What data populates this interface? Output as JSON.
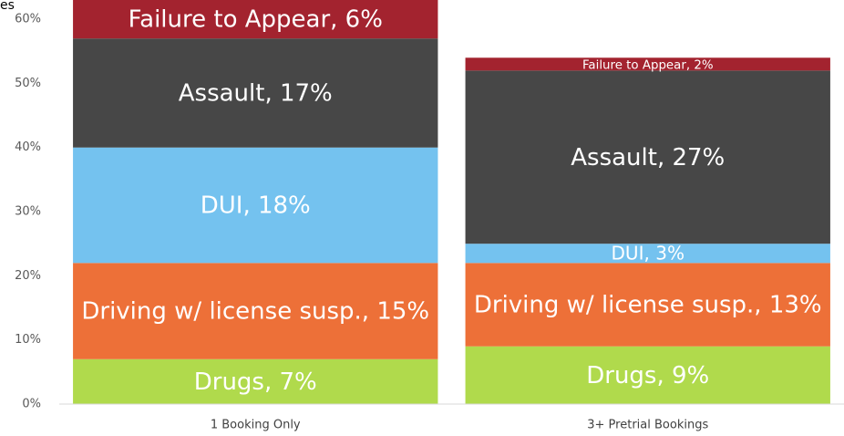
{
  "chart_data": {
    "type": "stacked_bar",
    "y_axis_label": "es",
    "categories": [
      "1 Booking Only",
      "3+ Pretrial Bookings"
    ],
    "series": [
      {
        "name": "Drugs",
        "color": "#b0da4c",
        "values": [
          7,
          9
        ],
        "value_labels": [
          "Drugs, 7%",
          "Drugs, 9%"
        ]
      },
      {
        "name": "Driving w/ license susp.",
        "color": "#ed7038",
        "values": [
          15,
          13
        ],
        "value_labels": [
          "Driving w/ license susp., 15%",
          "Driving w/ license susp., 13%"
        ]
      },
      {
        "name": "DUI",
        "color": "#74c2ef",
        "values": [
          18,
          3
        ],
        "value_labels": [
          "DUI, 18%",
          "DUI, 3%"
        ]
      },
      {
        "name": "Assault",
        "color": "#474747",
        "values": [
          17,
          27
        ],
        "value_labels": [
          "Assault, 17%",
          "Assault, 27%"
        ]
      },
      {
        "name": "Failure to Appear",
        "color": "#a3232f",
        "values": [
          6,
          2
        ],
        "value_labels": [
          "Failure to Appear, 6%",
          "Failure to Appear, 2%"
        ]
      }
    ],
    "ylim": [
      0,
      63
    ],
    "yticks": [
      {
        "value": 0,
        "label": "0%"
      },
      {
        "value": 10,
        "label": "10%"
      },
      {
        "value": 20,
        "label": "20%"
      },
      {
        "value": 30,
        "label": "30%"
      },
      {
        "value": 40,
        "label": "40%"
      },
      {
        "value": 50,
        "label": "50%"
      },
      {
        "value": 60,
        "label": "60%"
      }
    ]
  }
}
